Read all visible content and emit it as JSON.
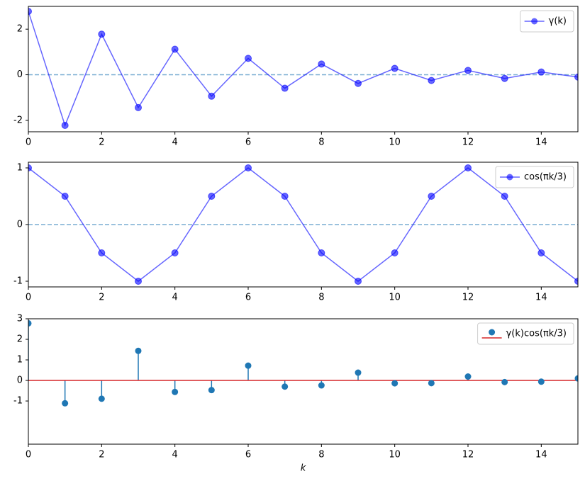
{
  "chart_data": [
    {
      "type": "line",
      "x": [
        0,
        1,
        2,
        3,
        4,
        5,
        6,
        7,
        8,
        9,
        10,
        11,
        12,
        13,
        14,
        15
      ],
      "series": [
        {
          "name": "γ(k)",
          "color": "#0000ff",
          "values": [
            2.78,
            -2.22,
            1.78,
            -1.44,
            1.12,
            -0.94,
            0.72,
            -0.59,
            0.47,
            -0.38,
            0.28,
            -0.25,
            0.19,
            -0.16,
            0.12,
            -0.1
          ]
        }
      ],
      "xlim": [
        0,
        15
      ],
      "xticks": [
        0,
        2,
        4,
        6,
        8,
        10,
        12,
        14
      ],
      "ylim": [
        -2.5,
        3.0
      ],
      "yticks": [
        -2,
        0,
        2
      ],
      "hlines": [
        0
      ],
      "hline_color": "#1f77b4",
      "legend": "upper right"
    },
    {
      "type": "line",
      "x": [
        0,
        1,
        2,
        3,
        4,
        5,
        6,
        7,
        8,
        9,
        10,
        11,
        12,
        13,
        14,
        15
      ],
      "series": [
        {
          "name": "cos(πk/3)",
          "color": "#0000ff",
          "values": [
            1,
            0.5,
            -0.5,
            -1,
            -0.5,
            0.5,
            1,
            0.5,
            -0.5,
            -1,
            -0.5,
            0.5,
            1,
            0.5,
            -0.5,
            -1
          ]
        }
      ],
      "xlim": [
        0,
        15
      ],
      "xticks": [
        0,
        2,
        4,
        6,
        8,
        10,
        12,
        14
      ],
      "ylim": [
        -1.1,
        1.1
      ],
      "yticks": [
        -1,
        0,
        1
      ],
      "hlines": [
        0
      ],
      "hline_color": "#1f77b4",
      "legend": "upper right"
    },
    {
      "type": "stem",
      "x": [
        0,
        1,
        2,
        3,
        4,
        5,
        6,
        7,
        8,
        9,
        10,
        11,
        12,
        13,
        14,
        15
      ],
      "series": [
        {
          "name": "γ(k)cos(πk/3)",
          "color": "#1f77b4",
          "values": [
            2.78,
            -1.11,
            -0.89,
            1.44,
            -0.56,
            -0.47,
            0.72,
            -0.3,
            -0.24,
            0.38,
            -0.14,
            -0.13,
            0.19,
            -0.08,
            -0.06,
            0.1
          ]
        }
      ],
      "baseline": 0,
      "baseline_color": "#d62728",
      "xlim": [
        0,
        15
      ],
      "xticks": [
        0,
        2,
        4,
        6,
        8,
        10,
        12,
        14
      ],
      "ylim": [
        -3.1,
        3.0
      ],
      "yticks": [
        -1,
        0,
        1,
        2,
        3
      ],
      "xlabel": "k",
      "legend": "upper right"
    }
  ]
}
